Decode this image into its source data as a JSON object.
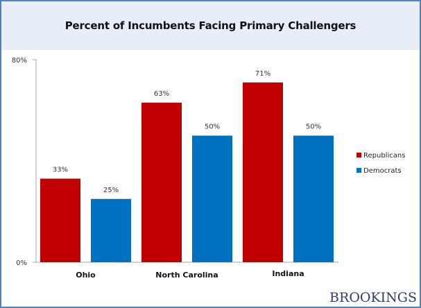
{
  "chart_data": {
    "type": "bar",
    "title": "Percent of Incumbents Facing Primary Challengers",
    "xlabel": "",
    "ylabel": "",
    "categories": [
      "Ohio",
      "North Carolina",
      "Indiana"
    ],
    "series": [
      {
        "name": "Republicans",
        "color": "#c00000",
        "values": [
          33,
          63,
          71
        ],
        "labels": [
          "33%",
          "63%",
          "71%"
        ]
      },
      {
        "name": "Democrats",
        "color": "#0070c0",
        "values": [
          25,
          50,
          50
        ],
        "labels": [
          "25%",
          "50%",
          "50%"
        ]
      }
    ],
    "ylim": [
      0,
      80
    ],
    "yticks": [
      0,
      80
    ],
    "ytick_labels": [
      "0%",
      "80%"
    ],
    "grid": false,
    "legend_position": "right"
  },
  "branding": {
    "logo_text": "BROOKINGS"
  }
}
